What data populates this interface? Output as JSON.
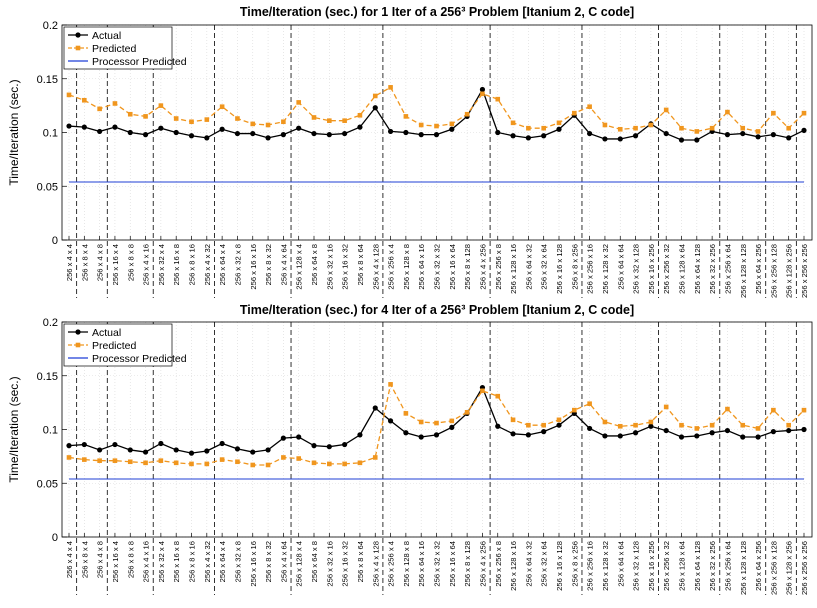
{
  "chart_data": [
    {
      "type": "line",
      "title": "Time/Iteration (sec.) for 1 Iter of a 256³ Problem [Itanium 2, C code]",
      "y_label": "Time/Iteration (sec.)",
      "categories": [
        "256 x 4 x 4",
        "256 x 8 x 4",
        "256 x 4 x 8",
        "256 x 16 x 4",
        "256 x 8 x 8",
        "256 x 4 x 16",
        "256 x 32 x 4",
        "256 x 16 x 8",
        "256 x 8 x 16",
        "256 x 4 x 32",
        "256 x 64 x 4",
        "256 x 32 x 8",
        "256 x 16 x 16",
        "256 x 8 x 32",
        "256 x 4 x 64",
        "256 x 128 x 4",
        "256 x 64 x 8",
        "256 x 32 x 16",
        "256 x 16 x 32",
        "256 x 8 x 64",
        "256 x 4 x 128",
        "256 x 256 x 4",
        "256 x 128 x 8",
        "256 x 64 x 16",
        "256 x 32 x 32",
        "256 x 16 x 64",
        "256 x 8 x 128",
        "256 x 4 x 256",
        "256 x 256 x 8",
        "256 x 128 x 16",
        "256 x 64 x 32",
        "256 x 32 x 64",
        "256 x 16 x 128",
        "256 x 8 x 256",
        "256 x 256 x 16",
        "256 x 128 x 32",
        "256 x 64 x 64",
        "256 x 32 x 128",
        "256 x 16 x 256",
        "256 x 256 x 32",
        "256 x 128 x 64",
        "256 x 64 x 128",
        "256 x 32 x 256",
        "256 x 256 x 64",
        "256 x 128 x 128",
        "256 x 64 x 256",
        "256 x 256 x 128",
        "256 x 128 x 256",
        "256 x 256 x 256"
      ],
      "series": [
        {
          "name": "Actual",
          "color": "#000000",
          "dash": "solid",
          "marker": "circle",
          "values": [
            0.106,
            0.105,
            0.101,
            0.105,
            0.1,
            0.098,
            0.104,
            0.1,
            0.097,
            0.095,
            0.103,
            0.099,
            0.099,
            0.095,
            0.098,
            0.104,
            0.099,
            0.098,
            0.099,
            0.105,
            0.123,
            0.101,
            0.1,
            0.098,
            0.098,
            0.103,
            0.115,
            0.14,
            0.1,
            0.097,
            0.095,
            0.097,
            0.103,
            0.116,
            0.099,
            0.094,
            0.094,
            0.097,
            0.108,
            0.099,
            0.093,
            0.093,
            0.101,
            0.098,
            0.099,
            0.096,
            0.098,
            0.095,
            0.102
          ]
        },
        {
          "name": "Predicted",
          "color": "#f0961e",
          "dash": "dashed",
          "marker": "square",
          "values": [
            0.135,
            0.13,
            0.122,
            0.127,
            0.117,
            0.115,
            0.125,
            0.113,
            0.11,
            0.112,
            0.124,
            0.113,
            0.108,
            0.107,
            0.11,
            0.128,
            0.114,
            0.111,
            0.111,
            0.116,
            0.134,
            0.142,
            0.115,
            0.107,
            0.106,
            0.108,
            0.117,
            0.136,
            0.131,
            0.109,
            0.104,
            0.104,
            0.109,
            0.118,
            0.124,
            0.107,
            0.103,
            0.104,
            0.107,
            0.121,
            0.104,
            0.101,
            0.104,
            0.119,
            0.104,
            0.101,
            0.118,
            0.104,
            0.118
          ]
        },
        {
          "name": "Processor Predicted",
          "color": "#1f3fd6",
          "dash": "solid",
          "marker": "none",
          "values": [
            0.054,
            0.054,
            0.054,
            0.054,
            0.054,
            0.054,
            0.054,
            0.054,
            0.054,
            0.054,
            0.054,
            0.054,
            0.054,
            0.054,
            0.054,
            0.054,
            0.054,
            0.054,
            0.054,
            0.054,
            0.054,
            0.054,
            0.054,
            0.054,
            0.054,
            0.054,
            0.054,
            0.054,
            0.054,
            0.054,
            0.054,
            0.054,
            0.054,
            0.054,
            0.054,
            0.054,
            0.054,
            0.054,
            0.054,
            0.054,
            0.054,
            0.054,
            0.054,
            0.054,
            0.054,
            0.054,
            0.054,
            0.054,
            0.054
          ]
        }
      ],
      "ylim": [
        0,
        0.2
      ],
      "yticks": [
        0,
        0.05,
        0.1,
        0.15,
        0.2
      ],
      "grid": true,
      "legend": "upper-left"
    },
    {
      "type": "line",
      "title": "Time/Iteration (sec.) for 4 Iter of a 256³ Problem [Itanium 2, C code]",
      "y_label": "Time/Iteration (sec.)",
      "categories": [
        "256 x 4 x 4",
        "256 x 8 x 4",
        "256 x 4 x 8",
        "256 x 16 x 4",
        "256 x 8 x 8",
        "256 x 4 x 16",
        "256 x 32 x 4",
        "256 x 16 x 8",
        "256 x 8 x 16",
        "256 x 4 x 32",
        "256 x 64 x 4",
        "256 x 32 x 8",
        "256 x 16 x 16",
        "256 x 8 x 32",
        "256 x 4 x 64",
        "256 x 128 x 4",
        "256 x 64 x 8",
        "256 x 32 x 16",
        "256 x 16 x 32",
        "256 x 8 x 64",
        "256 x 4 x 128",
        "256 x 256 x 4",
        "256 x 128 x 8",
        "256 x 64 x 16",
        "256 x 32 x 32",
        "256 x 16 x 64",
        "256 x 8 x 128",
        "256 x 4 x 256",
        "256 x 256 x 8",
        "256 x 128 x 16",
        "256 x 64 x 32",
        "256 x 32 x 64",
        "256 x 16 x 128",
        "256 x 8 x 256",
        "256 x 256 x 16",
        "256 x 128 x 32",
        "256 x 64 x 64",
        "256 x 32 x 128",
        "256 x 16 x 256",
        "256 x 256 x 32",
        "256 x 128 x 64",
        "256 x 64 x 128",
        "256 x 32 x 256",
        "256 x 256 x 64",
        "256 x 128 x 128",
        "256 x 64 x 256",
        "256 x 256 x 128",
        "256 x 128 x 256",
        "256 x 256 x 256"
      ],
      "series": [
        {
          "name": "Actual",
          "color": "#000000",
          "dash": "solid",
          "marker": "circle",
          "values": [
            0.085,
            0.086,
            0.081,
            0.086,
            0.081,
            0.079,
            0.087,
            0.081,
            0.078,
            0.08,
            0.087,
            0.082,
            0.079,
            0.081,
            0.092,
            0.093,
            0.085,
            0.084,
            0.086,
            0.095,
            0.12,
            0.108,
            0.097,
            0.093,
            0.095,
            0.102,
            0.115,
            0.139,
            0.103,
            0.096,
            0.095,
            0.098,
            0.104,
            0.115,
            0.101,
            0.094,
            0.094,
            0.097,
            0.103,
            0.099,
            0.093,
            0.094,
            0.097,
            0.099,
            0.093,
            0.093,
            0.098,
            0.099,
            0.1
          ]
        },
        {
          "name": "Predicted",
          "color": "#f0961e",
          "dash": "dashed",
          "marker": "square",
          "values": [
            0.074,
            0.072,
            0.071,
            0.071,
            0.07,
            0.069,
            0.071,
            0.069,
            0.068,
            0.068,
            0.072,
            0.07,
            0.067,
            0.067,
            0.074,
            0.073,
            0.069,
            0.068,
            0.068,
            0.069,
            0.074,
            0.142,
            0.115,
            0.107,
            0.106,
            0.108,
            0.116,
            0.136,
            0.131,
            0.109,
            0.104,
            0.104,
            0.109,
            0.118,
            0.124,
            0.107,
            0.103,
            0.104,
            0.107,
            0.121,
            0.104,
            0.101,
            0.104,
            0.119,
            0.104,
            0.101,
            0.118,
            0.104,
            0.118
          ]
        },
        {
          "name": "Processor Predicted",
          "color": "#1f3fd6",
          "dash": "solid",
          "marker": "none",
          "values": [
            0.054,
            0.054,
            0.054,
            0.054,
            0.054,
            0.054,
            0.054,
            0.054,
            0.054,
            0.054,
            0.054,
            0.054,
            0.054,
            0.054,
            0.054,
            0.054,
            0.054,
            0.054,
            0.054,
            0.054,
            0.054,
            0.054,
            0.054,
            0.054,
            0.054,
            0.054,
            0.054,
            0.054,
            0.054,
            0.054,
            0.054,
            0.054,
            0.054,
            0.054,
            0.054,
            0.054,
            0.054,
            0.054,
            0.054,
            0.054,
            0.054,
            0.054,
            0.054,
            0.054,
            0.054,
            0.054,
            0.054,
            0.054,
            0.054
          ]
        }
      ],
      "ylim": [
        0,
        0.2
      ],
      "yticks": [
        0,
        0.05,
        0.1,
        0.15,
        0.2
      ],
      "grid": true,
      "legend": "upper-left"
    }
  ]
}
